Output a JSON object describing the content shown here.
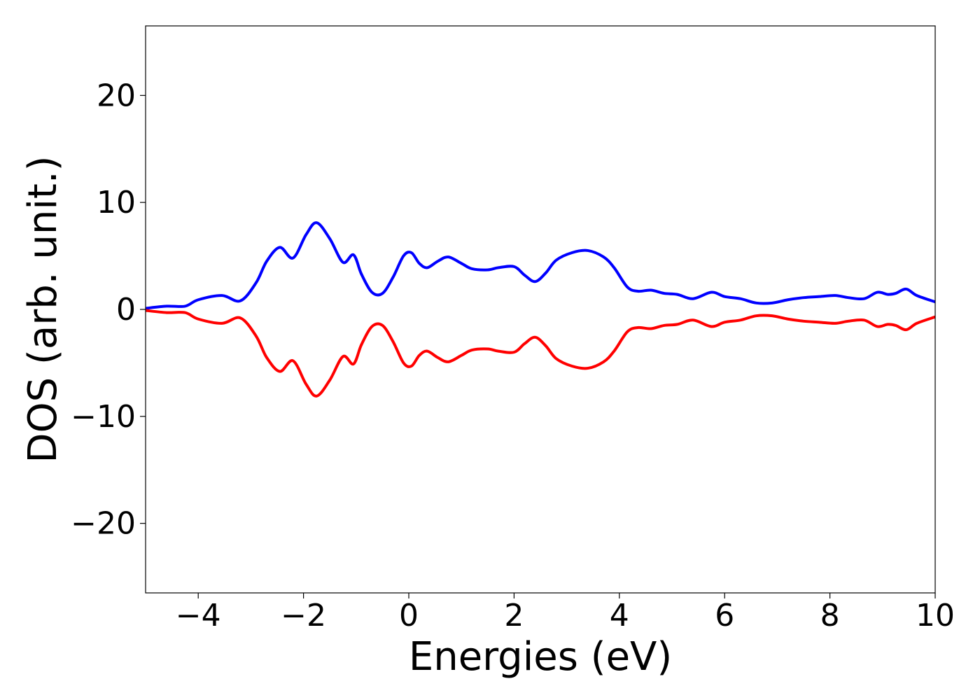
{
  "chart_data": {
    "type": "line",
    "title": "",
    "xlabel": "Energies (eV)",
    "ylabel": "DOS (arb. unit.)",
    "xlim": [
      -5,
      10
    ],
    "ylim": [
      -26.5,
      26.5
    ],
    "xticks": [
      -4,
      -2,
      0,
      2,
      4,
      6,
      8,
      10
    ],
    "yticks": [
      -20,
      -10,
      0,
      10,
      20
    ],
    "xtick_labels": [
      "−4",
      "−2",
      "0",
      "2",
      "4",
      "6",
      "8",
      "10"
    ],
    "ytick_labels": [
      "−20",
      "−10",
      "0",
      "10",
      "20"
    ],
    "grid": false,
    "legend": "none",
    "series": [
      {
        "color": "#0000ff",
        "x": [
          -5.0,
          -4.6,
          -4.25,
          -4.0,
          -3.55,
          -3.2,
          -2.9,
          -2.7,
          -2.45,
          -2.2,
          -1.95,
          -1.75,
          -1.5,
          -1.25,
          -1.05,
          -0.9,
          -0.7,
          -0.5,
          -0.3,
          -0.1,
          0.05,
          0.2,
          0.35,
          0.55,
          0.75,
          1.0,
          1.2,
          1.5,
          1.7,
          2.0,
          2.2,
          2.4,
          2.6,
          2.8,
          3.1,
          3.4,
          3.7,
          3.9,
          4.15,
          4.35,
          4.6,
          4.85,
          5.1,
          5.4,
          5.75,
          6.0,
          6.3,
          6.6,
          6.9,
          7.2,
          7.5,
          7.8,
          8.1,
          8.35,
          8.65,
          8.9,
          9.1,
          9.25,
          9.45,
          9.65,
          10.0
        ],
        "values": [
          0.1,
          0.3,
          0.3,
          0.9,
          1.3,
          0.8,
          2.5,
          4.5,
          5.8,
          4.8,
          7.0,
          8.1,
          6.6,
          4.4,
          5.1,
          3.3,
          1.6,
          1.5,
          3.0,
          5.0,
          5.3,
          4.3,
          3.9,
          4.5,
          4.9,
          4.3,
          3.8,
          3.7,
          3.9,
          4.0,
          3.2,
          2.6,
          3.4,
          4.6,
          5.3,
          5.5,
          4.9,
          3.9,
          2.1,
          1.7,
          1.8,
          1.5,
          1.4,
          1.0,
          1.6,
          1.2,
          1.0,
          0.6,
          0.6,
          0.9,
          1.1,
          1.2,
          1.3,
          1.1,
          1.0,
          1.6,
          1.4,
          1.5,
          1.9,
          1.3,
          0.7
        ]
      },
      {
        "color": "#ff0000",
        "x": [
          -5.0,
          -4.6,
          -4.25,
          -4.0,
          -3.55,
          -3.2,
          -2.9,
          -2.7,
          -2.45,
          -2.2,
          -1.95,
          -1.75,
          -1.5,
          -1.25,
          -1.05,
          -0.9,
          -0.7,
          -0.5,
          -0.3,
          -0.1,
          0.05,
          0.2,
          0.35,
          0.55,
          0.75,
          1.0,
          1.2,
          1.5,
          1.7,
          2.0,
          2.2,
          2.4,
          2.6,
          2.8,
          3.1,
          3.4,
          3.7,
          3.9,
          4.15,
          4.35,
          4.6,
          4.85,
          5.1,
          5.4,
          5.75,
          6.0,
          6.3,
          6.6,
          6.9,
          7.2,
          7.5,
          7.8,
          8.1,
          8.35,
          8.65,
          8.9,
          9.1,
          9.25,
          9.45,
          9.65,
          10.0
        ],
        "values": [
          -0.1,
          -0.3,
          -0.3,
          -0.9,
          -1.3,
          -0.8,
          -2.5,
          -4.5,
          -5.8,
          -4.8,
          -7.0,
          -8.1,
          -6.6,
          -4.4,
          -5.1,
          -3.3,
          -1.6,
          -1.5,
          -3.0,
          -5.0,
          -5.3,
          -4.3,
          -3.9,
          -4.5,
          -4.9,
          -4.3,
          -3.8,
          -3.7,
          -3.9,
          -4.0,
          -3.2,
          -2.6,
          -3.4,
          -4.6,
          -5.3,
          -5.5,
          -4.9,
          -3.9,
          -2.1,
          -1.7,
          -1.8,
          -1.5,
          -1.4,
          -1.0,
          -1.6,
          -1.2,
          -1.0,
          -0.6,
          -0.6,
          -0.9,
          -1.1,
          -1.2,
          -1.3,
          -1.1,
          -1.0,
          -1.6,
          -1.4,
          -1.5,
          -1.9,
          -1.3,
          -0.7
        ]
      }
    ]
  }
}
